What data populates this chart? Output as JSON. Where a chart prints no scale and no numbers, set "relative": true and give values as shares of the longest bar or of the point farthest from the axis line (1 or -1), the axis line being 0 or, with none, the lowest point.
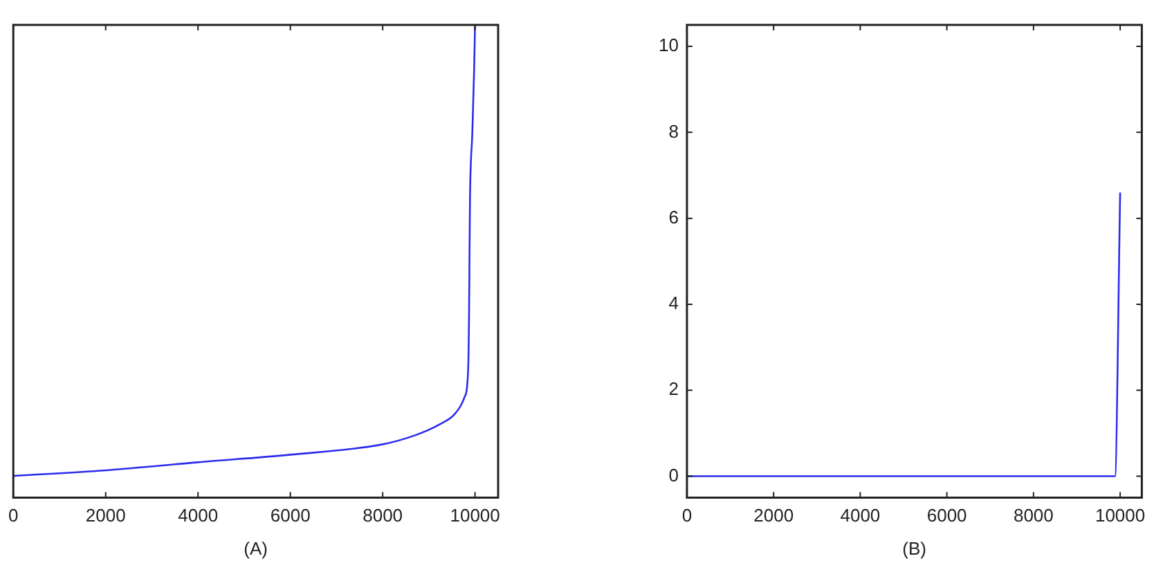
{
  "chart_data": [
    {
      "type": "line",
      "xlabel": "(A)",
      "xlim": [
        0,
        10500
      ],
      "xticks": [
        0,
        2000,
        4000,
        6000,
        8000,
        10000
      ],
      "relative": true,
      "grid": false,
      "legend": false,
      "marker": "none",
      "line_style": "solid",
      "series": [
        {
          "color": "#2b2bf0",
          "x": [
            0,
            2000,
            4000,
            6000,
            8000,
            8700,
            9210,
            9570,
            9770,
            9850,
            9870,
            9890,
            9940,
            9980,
            10000
          ],
          "values": [
            0.046,
            0.058,
            0.075,
            0.091,
            0.113,
            0.132,
            0.154,
            0.178,
            0.212,
            0.269,
            0.385,
            0.625,
            0.769,
            0.904,
            1
          ]
        }
      ]
    },
    {
      "type": "line",
      "xlabel": "(B)",
      "xlim": [
        0,
        10500
      ],
      "xticks": [
        0,
        2000,
        4000,
        6000,
        8000,
        10000
      ],
      "ylim": [
        -0.5,
        10.5
      ],
      "yticks": [
        0,
        2,
        4,
        6,
        8,
        10
      ],
      "grid": false,
      "legend": false,
      "marker": "none",
      "line_style": "solid",
      "series": [
        {
          "color": "#2b2bf0",
          "x": [
            0,
            9880,
            10000
          ],
          "values": [
            0,
            0,
            6.6
          ]
        }
      ]
    }
  ]
}
